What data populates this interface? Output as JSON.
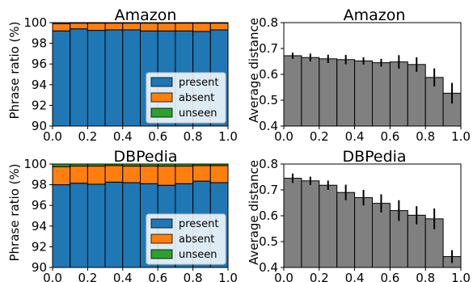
{
  "colors": {
    "present": "#1f77b4",
    "absent": "#ff7f0e",
    "unseen": "#2ca02c",
    "distance_bar": "#808080",
    "edge": "#000000"
  },
  "chart_data": [
    {
      "type": "bar",
      "subtype": "stacked",
      "title": "Amazon",
      "xlabel": "",
      "ylabel": "Phrase ratio (%)",
      "xlim": [
        0.0,
        1.0
      ],
      "ylim": [
        90,
        100
      ],
      "xticks": [
        "0.0",
        "0.2",
        "0.4",
        "0.6",
        "0.8",
        "1.0"
      ],
      "yticks": [
        "90",
        "92",
        "94",
        "96",
        "98",
        "100"
      ],
      "bin_centers": [
        0.05,
        0.15,
        0.25,
        0.35,
        0.45,
        0.55,
        0.65,
        0.75,
        0.85,
        0.95
      ],
      "series": [
        {
          "name": "present",
          "values": [
            99.2,
            99.4,
            99.25,
            99.3,
            99.3,
            99.2,
            99.2,
            99.2,
            99.15,
            99.3
          ]
        },
        {
          "name": "absent",
          "values": [
            0.7,
            0.55,
            0.7,
            0.65,
            0.65,
            0.75,
            0.75,
            0.75,
            0.8,
            0.65
          ]
        },
        {
          "name": "unseen",
          "values": [
            0.1,
            0.05,
            0.05,
            0.05,
            0.05,
            0.05,
            0.05,
            0.05,
            0.05,
            0.05
          ]
        }
      ],
      "legend": "lower-right",
      "grid": false
    },
    {
      "type": "bar",
      "title": "Amazon",
      "xlabel": "",
      "ylabel": "Average distance",
      "xlim": [
        0.0,
        1.0
      ],
      "ylim": [
        0.4,
        0.8
      ],
      "xticks": [
        "0.0",
        "0.2",
        "0.4",
        "0.6",
        "0.8",
        "1.0"
      ],
      "yticks": [
        "0.4",
        "0.5",
        "0.6",
        "0.7",
        "0.8"
      ],
      "bin_centers": [
        0.05,
        0.15,
        0.25,
        0.35,
        0.45,
        0.55,
        0.65,
        0.75,
        0.85,
        0.95
      ],
      "values": [
        0.672,
        0.665,
        0.66,
        0.657,
        0.652,
        0.645,
        0.648,
        0.638,
        0.588,
        0.527
      ],
      "errors": [
        0.012,
        0.015,
        0.016,
        0.018,
        0.014,
        0.015,
        0.026,
        0.028,
        0.035,
        0.04
      ],
      "grid": false
    },
    {
      "type": "bar",
      "subtype": "stacked",
      "title": "DBPedia",
      "xlabel": "",
      "ylabel": "Phrase ratio (%)",
      "xlim": [
        0.0,
        1.0
      ],
      "ylim": [
        90,
        100
      ],
      "xticks": [
        "0.0",
        "0.2",
        "0.4",
        "0.6",
        "0.8",
        "1.0"
      ],
      "yticks": [
        "90",
        "92",
        "94",
        "96",
        "98",
        "100"
      ],
      "bin_centers": [
        0.05,
        0.15,
        0.25,
        0.35,
        0.45,
        0.55,
        0.65,
        0.75,
        0.85,
        0.95
      ],
      "series": [
        {
          "name": "present",
          "values": [
            98.0,
            98.15,
            98.05,
            98.25,
            98.2,
            98.1,
            97.95,
            98.1,
            98.35,
            98.2
          ]
        },
        {
          "name": "absent",
          "values": [
            1.75,
            1.65,
            1.75,
            1.6,
            1.6,
            1.7,
            1.85,
            1.7,
            1.5,
            1.65
          ]
        },
        {
          "name": "unseen",
          "values": [
            0.25,
            0.2,
            0.2,
            0.15,
            0.2,
            0.2,
            0.2,
            0.2,
            0.15,
            0.15
          ]
        }
      ],
      "legend": "lower-right",
      "grid": false
    },
    {
      "type": "bar",
      "title": "DBPedia",
      "xlabel": "",
      "ylabel": "Average distance",
      "xlim": [
        0.0,
        1.0
      ],
      "ylim": [
        0.4,
        0.8
      ],
      "xticks": [
        "0.0",
        "0.2",
        "0.4",
        "0.6",
        "0.8",
        "1.0"
      ],
      "yticks": [
        "0.4",
        "0.5",
        "0.6",
        "0.7",
        "0.8"
      ],
      "bin_centers": [
        0.05,
        0.15,
        0.25,
        0.35,
        0.45,
        0.55,
        0.65,
        0.75,
        0.85,
        0.95
      ],
      "values": [
        0.745,
        0.735,
        0.718,
        0.69,
        0.67,
        0.648,
        0.62,
        0.602,
        0.588,
        0.442
      ],
      "errors": [
        0.018,
        0.016,
        0.018,
        0.03,
        0.03,
        0.035,
        0.04,
        0.035,
        0.04,
        0.025
      ],
      "grid": false
    }
  ]
}
